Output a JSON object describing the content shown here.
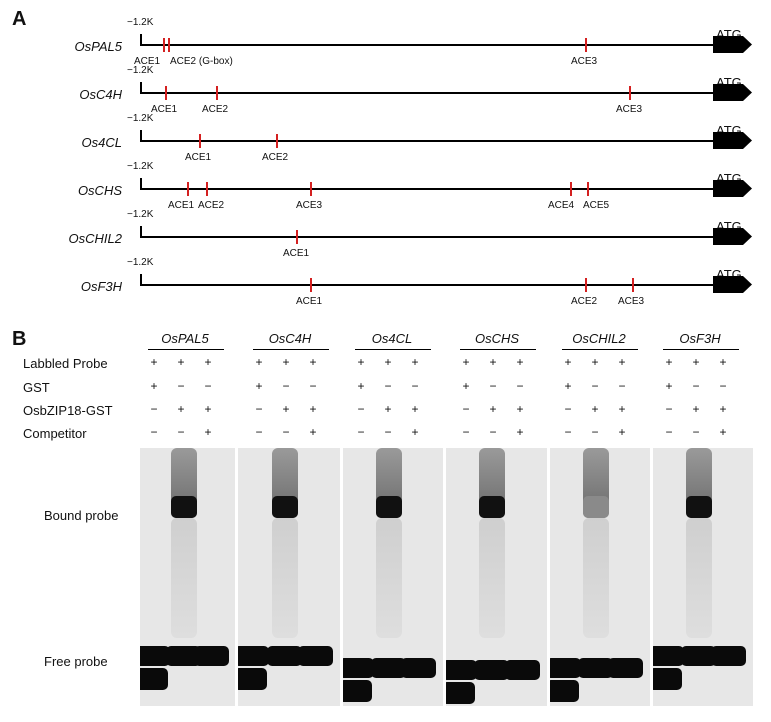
{
  "panels": {
    "a": "A",
    "b": "B"
  },
  "start_label": "−1.2K",
  "atg_label": "ATG",
  "genes": [
    {
      "name": "OsPAL5",
      "ace": [
        "ACE1",
        "ACE2 (G-box)",
        "ACE3"
      ]
    },
    {
      "name": "OsC4H",
      "ace": [
        "ACE1",
        "ACE2",
        "ACE3"
      ]
    },
    {
      "name": "Os4CL",
      "ace": [
        "ACE1",
        "ACE2"
      ]
    },
    {
      "name": "OsCHS",
      "ace": [
        "ACE1",
        "ACE2",
        "ACE3",
        "ACE4",
        "ACE5"
      ]
    },
    {
      "name": "OsCHIL2",
      "ace": [
        "ACE1"
      ]
    },
    {
      "name": "OsF3H",
      "ace": [
        "ACE1",
        "ACE2",
        "ACE3"
      ]
    }
  ],
  "emsa": {
    "row_labels": [
      "Labbled Probe",
      "GST",
      "OsbZIP18-GST",
      "Competitor"
    ],
    "signs": [
      [
        "+",
        "+",
        "+"
      ],
      [
        "+",
        "−",
        "−"
      ],
      [
        "−",
        "+",
        "+"
      ],
      [
        "−",
        "−",
        "+"
      ]
    ],
    "gel_genes": [
      "OsPAL5",
      "OsC4H",
      "Os4CL",
      "OsCHS",
      "OsCHIL2",
      "OsF3H"
    ],
    "bound_label": "Bound probe",
    "free_label": "Free probe"
  },
  "colors": {
    "ace_mark": "#d42020",
    "gel_background": "#e7e7e7",
    "band": "#0a0a0a"
  }
}
